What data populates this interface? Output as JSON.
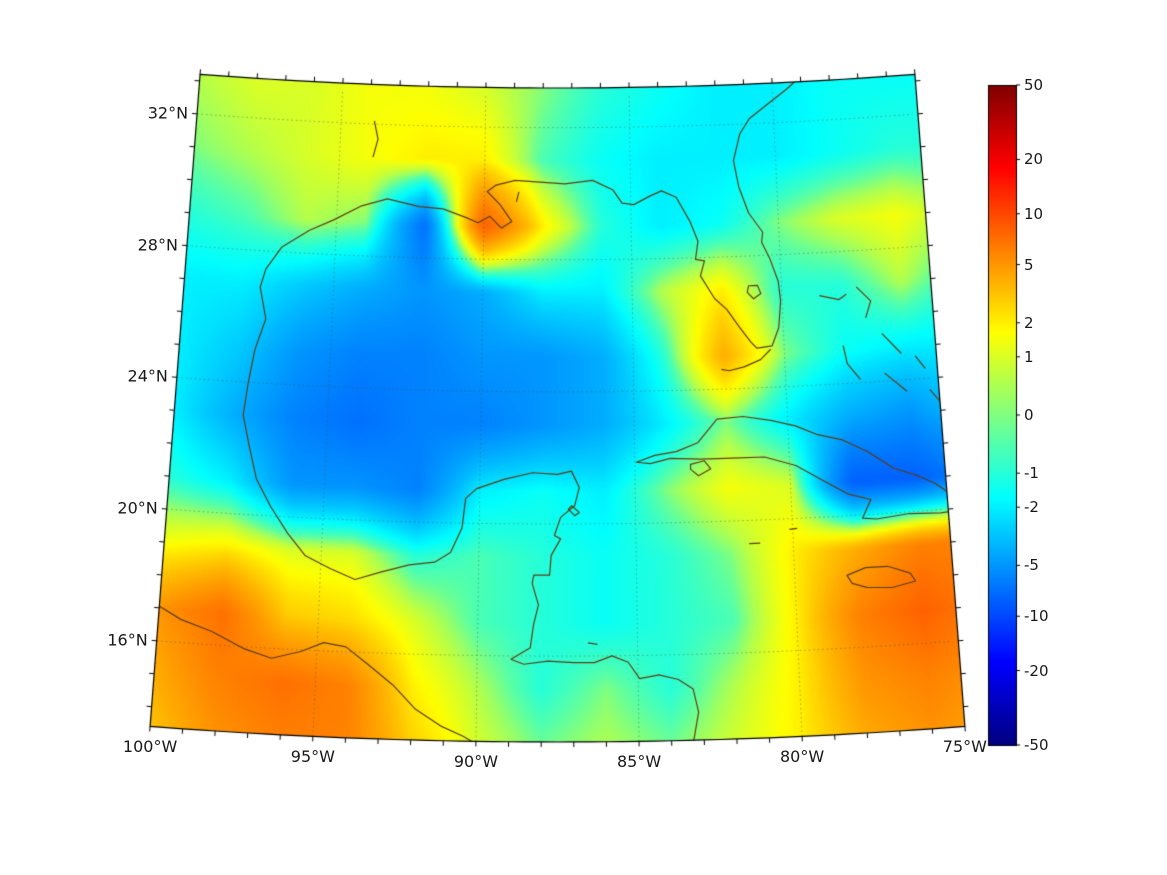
{
  "figure": {
    "background": "#ffffff",
    "map": {
      "lon_min": -100,
      "lon_max": -75,
      "lat_min": 13.4,
      "lat_max": 33.2,
      "xticks": [
        {
          "lon": -100,
          "label": "100°W"
        },
        {
          "lon": -95,
          "label": "95°W"
        },
        {
          "lon": -90,
          "label": "90°W"
        },
        {
          "lon": -85,
          "label": "85°W"
        },
        {
          "lon": -80,
          "label": "80°W"
        },
        {
          "lon": -75,
          "label": "75°W"
        }
      ],
      "yticks": [
        {
          "lat": 32,
          "label": "32°N"
        },
        {
          "lat": 28,
          "label": "28°N"
        },
        {
          "lat": 24,
          "label": "24°N"
        },
        {
          "lat": 20,
          "label": "20°N"
        },
        {
          "lat": 16,
          "label": "16°N"
        }
      ],
      "grid_color": "rgba(70,90,70,0.55)",
      "coast_color": "#5e3c12",
      "frame_color": "#000000"
    },
    "colorbar": {
      "position": "right",
      "scale": "symlog",
      "vmin": -50,
      "vmax": 50,
      "ticks": [
        {
          "value": 50,
          "label": "50"
        },
        {
          "value": 20,
          "label": "20"
        },
        {
          "value": 10,
          "label": "10"
        },
        {
          "value": 5,
          "label": "5"
        },
        {
          "value": 2,
          "label": "2"
        },
        {
          "value": 1,
          "label": "1"
        },
        {
          "value": 0,
          "label": "0"
        },
        {
          "value": -1,
          "label": "-1"
        },
        {
          "value": -2,
          "label": "-2"
        },
        {
          "value": -5,
          "label": "-5"
        },
        {
          "value": -10,
          "label": "-10"
        },
        {
          "value": -20,
          "label": "-20"
        },
        {
          "value": -50,
          "label": "-50"
        }
      ]
    }
  },
  "chart_data": {
    "type": "heatmap",
    "projection": "lambert-conformal-conic",
    "colormap": "jet",
    "region": "Gulf of Mexico / Caribbean",
    "lons": [
      -100,
      -98,
      -96,
      -94,
      -92,
      -90,
      -88,
      -86,
      -84,
      -82,
      -80,
      -78,
      -76,
      -74
    ],
    "lats": [
      33,
      31,
      29,
      27,
      25,
      23,
      21,
      19,
      17,
      15,
      13
    ],
    "values": [
      [
        0.5,
        1,
        1,
        1.5,
        1.5,
        1,
        0,
        -1,
        -1.5,
        -2,
        -2,
        -1.5,
        -1.5,
        -1.5
      ],
      [
        0,
        0.5,
        1,
        1.5,
        2,
        2,
        -0.5,
        -1.5,
        -2,
        -2,
        -2,
        -1.5,
        -1,
        -1
      ],
      [
        -1,
        -0.5,
        0.5,
        0,
        -7,
        8,
        2,
        -1,
        -2,
        -1.5,
        0,
        1,
        1.5,
        0.5
      ],
      [
        -2,
        -2,
        -3,
        -4,
        -5,
        -4,
        -2,
        -2,
        0.5,
        2,
        -1,
        -1,
        0.5,
        -1
      ],
      [
        -2,
        -3,
        -5,
        -6,
        -6,
        -5,
        -5,
        -4,
        -1,
        4,
        0,
        -1.5,
        -2,
        -2
      ],
      [
        -2,
        -4,
        -6,
        -7,
        -6,
        -6,
        -5,
        -4,
        -2,
        0,
        -2,
        -4,
        -5,
        -3
      ],
      [
        -1,
        -2,
        -5,
        -5,
        -6,
        -2,
        -1.5,
        -2,
        0,
        1.5,
        1,
        -8,
        -8,
        -6
      ],
      [
        1.5,
        2,
        1,
        1,
        -1,
        -0.5,
        -1,
        -1.5,
        -1,
        0,
        2,
        4,
        6,
        6
      ],
      [
        5,
        7,
        3,
        2.5,
        1,
        -0.5,
        -1,
        -1.5,
        -1,
        -0.5,
        2,
        6,
        8,
        6
      ],
      [
        4,
        6,
        7,
        6,
        2,
        0.5,
        -1,
        0,
        -1,
        0.5,
        2,
        5,
        6,
        5
      ],
      [
        3,
        5,
        6,
        6,
        3,
        1,
        0,
        0.5,
        0,
        1,
        2,
        4,
        5,
        4
      ]
    ],
    "coastlines": [
      {
        "name": "us-gulf-atlantic-coast",
        "closed": false,
        "pts": [
          [
            -97.2,
            25.95
          ],
          [
            -97.45,
            26.9
          ],
          [
            -97.3,
            27.45
          ],
          [
            -96.8,
            28.15
          ],
          [
            -95.9,
            28.7
          ],
          [
            -95.1,
            29.05
          ],
          [
            -94.2,
            29.5
          ],
          [
            -93.3,
            29.75
          ],
          [
            -92.2,
            29.55
          ],
          [
            -91.4,
            29.5
          ],
          [
            -90.6,
            29.25
          ],
          [
            -90.2,
            29.1
          ],
          [
            -89.8,
            29.3
          ],
          [
            -89.4,
            28.95
          ],
          [
            -89.05,
            29.15
          ],
          [
            -89.45,
            29.65
          ],
          [
            -89.9,
            30.05
          ],
          [
            -89.6,
            30.25
          ],
          [
            -88.95,
            30.4
          ],
          [
            -88.1,
            30.35
          ],
          [
            -87.25,
            30.3
          ],
          [
            -86.3,
            30.4
          ],
          [
            -85.6,
            30.1
          ],
          [
            -85.3,
            29.7
          ],
          [
            -84.9,
            29.65
          ],
          [
            -84.35,
            29.9
          ],
          [
            -83.95,
            30.05
          ],
          [
            -83.45,
            29.85
          ],
          [
            -83.0,
            29.1
          ],
          [
            -82.75,
            28.5
          ],
          [
            -82.85,
            27.95
          ],
          [
            -82.55,
            27.9
          ],
          [
            -82.7,
            27.45
          ],
          [
            -82.25,
            26.75
          ],
          [
            -81.85,
            26.4
          ],
          [
            -81.45,
            25.85
          ],
          [
            -81.1,
            25.4
          ],
          [
            -80.9,
            25.2
          ],
          [
            -80.4,
            25.25
          ],
          [
            -80.15,
            25.8
          ],
          [
            -80.05,
            26.6
          ],
          [
            -80.1,
            27.2
          ],
          [
            -80.35,
            27.9
          ],
          [
            -80.6,
            28.4
          ],
          [
            -80.55,
            28.7
          ],
          [
            -81.0,
            29.3
          ],
          [
            -81.3,
            30.1
          ],
          [
            -81.45,
            30.9
          ],
          [
            -81.2,
            31.7
          ],
          [
            -80.85,
            32.15
          ],
          [
            -80.3,
            32.5
          ],
          [
            -79.5,
            33.0
          ],
          [
            -78.8,
            33.5
          ]
        ]
      },
      {
        "name": "mexico-central-america-coast",
        "closed": false,
        "pts": [
          [
            -97.2,
            25.95
          ],
          [
            -97.5,
            25.0
          ],
          [
            -97.65,
            24.0
          ],
          [
            -97.75,
            23.0
          ],
          [
            -97.5,
            22.1
          ],
          [
            -97.2,
            21.1
          ],
          [
            -96.7,
            20.3
          ],
          [
            -96.1,
            19.5
          ],
          [
            -95.5,
            18.85
          ],
          [
            -94.7,
            18.5
          ],
          [
            -93.9,
            18.2
          ],
          [
            -93.1,
            18.45
          ],
          [
            -92.2,
            18.7
          ],
          [
            -91.4,
            18.8
          ],
          [
            -90.9,
            19.1
          ],
          [
            -90.55,
            19.85
          ],
          [
            -90.45,
            20.75
          ],
          [
            -90.1,
            21.05
          ],
          [
            -89.2,
            21.35
          ],
          [
            -88.3,
            21.55
          ],
          [
            -87.5,
            21.5
          ],
          [
            -87.05,
            21.6
          ],
          [
            -86.8,
            21.1
          ],
          [
            -86.95,
            20.55
          ],
          [
            -87.4,
            20.2
          ],
          [
            -87.6,
            19.65
          ],
          [
            -87.4,
            19.55
          ],
          [
            -87.7,
            19.05
          ],
          [
            -87.75,
            18.45
          ],
          [
            -88.25,
            18.45
          ],
          [
            -88.3,
            18.2
          ],
          [
            -88.1,
            17.55
          ],
          [
            -88.25,
            16.95
          ],
          [
            -88.35,
            16.25
          ],
          [
            -88.95,
            15.9
          ],
          [
            -88.55,
            15.75
          ],
          [
            -87.8,
            15.85
          ],
          [
            -87.0,
            15.8
          ],
          [
            -86.35,
            15.8
          ],
          [
            -85.8,
            16.0
          ],
          [
            -85.3,
            15.8
          ],
          [
            -84.95,
            15.3
          ],
          [
            -84.35,
            15.4
          ],
          [
            -83.75,
            15.25
          ],
          [
            -83.3,
            14.95
          ],
          [
            -83.15,
            14.25
          ],
          [
            -83.3,
            13.5
          ],
          [
            -83.35,
            13.3
          ]
        ]
      },
      {
        "name": "pacific-coast",
        "closed": false,
        "pts": [
          [
            -100.3,
            17.2
          ],
          [
            -99.3,
            16.7
          ],
          [
            -98.3,
            16.4
          ],
          [
            -97.3,
            15.95
          ],
          [
            -96.4,
            15.7
          ],
          [
            -95.5,
            15.95
          ],
          [
            -94.8,
            16.25
          ],
          [
            -94.1,
            16.15
          ],
          [
            -93.4,
            15.65
          ],
          [
            -92.6,
            15.05
          ],
          [
            -91.9,
            14.35
          ],
          [
            -91.1,
            13.85
          ],
          [
            -90.4,
            13.55
          ],
          [
            -89.95,
            13.3
          ]
        ]
      },
      {
        "name": "cuba",
        "closed": true,
        "pts": [
          [
            -84.95,
            21.85
          ],
          [
            -84.35,
            22.05
          ],
          [
            -83.65,
            22.15
          ],
          [
            -82.95,
            22.4
          ],
          [
            -82.3,
            23.1
          ],
          [
            -81.45,
            23.15
          ],
          [
            -80.55,
            23.0
          ],
          [
            -79.75,
            22.8
          ],
          [
            -79.05,
            22.5
          ],
          [
            -78.25,
            22.3
          ],
          [
            -77.45,
            21.9
          ],
          [
            -76.65,
            21.35
          ],
          [
            -75.95,
            21.1
          ],
          [
            -75.35,
            20.8
          ],
          [
            -74.75,
            20.35
          ],
          [
            -74.3,
            20.2
          ],
          [
            -74.45,
            19.95
          ],
          [
            -75.25,
            19.9
          ],
          [
            -76.25,
            19.95
          ],
          [
            -77.3,
            19.85
          ],
          [
            -77.75,
            19.9
          ],
          [
            -77.45,
            20.45
          ],
          [
            -78.15,
            20.65
          ],
          [
            -78.85,
            21.05
          ],
          [
            -79.8,
            21.6
          ],
          [
            -80.8,
            21.9
          ],
          [
            -81.85,
            21.9
          ],
          [
            -82.85,
            21.9
          ],
          [
            -83.85,
            21.95
          ],
          [
            -84.5,
            21.8
          ]
        ]
      },
      {
        "name": "jamaica",
        "closed": true,
        "pts": [
          [
            -78.35,
            18.2
          ],
          [
            -77.75,
            18.4
          ],
          [
            -77.05,
            18.4
          ],
          [
            -76.35,
            18.15
          ],
          [
            -76.2,
            17.9
          ],
          [
            -76.95,
            17.75
          ],
          [
            -77.75,
            17.8
          ],
          [
            -78.2,
            17.95
          ]
        ]
      },
      {
        "name": "isla-de-la-juventud",
        "closed": true,
        "pts": [
          [
            -83.2,
            21.75
          ],
          [
            -82.75,
            21.85
          ],
          [
            -82.55,
            21.6
          ],
          [
            -82.95,
            21.4
          ],
          [
            -83.2,
            21.6
          ]
        ]
      },
      {
        "name": "cozumel",
        "closed": true,
        "pts": [
          [
            -87.05,
            20.55
          ],
          [
            -86.8,
            20.35
          ],
          [
            -86.95,
            20.25
          ],
          [
            -87.15,
            20.45
          ]
        ]
      },
      {
        "name": "florida-keys",
        "closed": false,
        "pts": [
          [
            -80.45,
            25.15
          ],
          [
            -80.8,
            24.85
          ],
          [
            -81.35,
            24.65
          ],
          [
            -81.85,
            24.55
          ],
          [
            -82.1,
            24.6
          ]
        ]
      },
      {
        "name": "lake-okeechobee",
        "closed": true,
        "pts": [
          [
            -81.1,
            27.1
          ],
          [
            -80.8,
            27.1
          ],
          [
            -80.7,
            26.85
          ],
          [
            -80.95,
            26.7
          ],
          [
            -81.15,
            26.9
          ]
        ]
      },
      {
        "name": "grand-bahama",
        "closed": false,
        "pts": [
          [
            -78.75,
            26.7
          ],
          [
            -78.1,
            26.55
          ],
          [
            -77.85,
            26.7
          ]
        ]
      },
      {
        "name": "abaco",
        "closed": false,
        "pts": [
          [
            -77.5,
            26.9
          ],
          [
            -77.05,
            26.45
          ],
          [
            -77.25,
            25.95
          ]
        ]
      },
      {
        "name": "andros",
        "closed": false,
        "pts": [
          [
            -78.05,
            25.15
          ],
          [
            -77.95,
            24.6
          ],
          [
            -77.55,
            24.1
          ]
        ]
      },
      {
        "name": "eleuthera",
        "closed": false,
        "pts": [
          [
            -76.75,
            25.45
          ],
          [
            -76.15,
            24.8
          ]
        ]
      },
      {
        "name": "exuma-chain",
        "closed": false,
        "pts": [
          [
            -76.75,
            24.25
          ],
          [
            -76.05,
            23.65
          ]
        ]
      },
      {
        "name": "long-island-bahamas",
        "closed": false,
        "pts": [
          [
            -75.3,
            23.65
          ],
          [
            -74.85,
            23.1
          ]
        ]
      },
      {
        "name": "cat-island",
        "closed": false,
        "pts": [
          [
            -75.7,
            24.7
          ],
          [
            -75.4,
            24.3
          ]
        ]
      },
      {
        "name": "grand-cayman",
        "closed": false,
        "pts": [
          [
            -81.4,
            19.3
          ],
          [
            -81.05,
            19.3
          ]
        ]
      },
      {
        "name": "little-cayman",
        "closed": false,
        "pts": [
          [
            -80.1,
            19.68
          ],
          [
            -79.85,
            19.7
          ]
        ]
      },
      {
        "name": "roatan",
        "closed": false,
        "pts": [
          [
            -86.55,
            16.4
          ],
          [
            -86.25,
            16.35
          ]
        ]
      },
      {
        "name": "toledo-bend",
        "closed": false,
        "pts": [
          [
            -93.85,
            31.0
          ],
          [
            -93.7,
            31.55
          ],
          [
            -93.85,
            32.1
          ]
        ]
      },
      {
        "name": "chandeleur-islands",
        "closed": false,
        "pts": [
          [
            -88.9,
            29.75
          ],
          [
            -88.82,
            30.05
          ]
        ]
      }
    ]
  }
}
